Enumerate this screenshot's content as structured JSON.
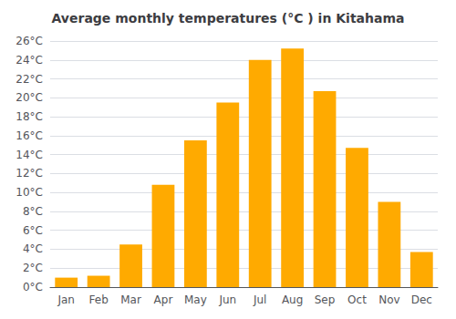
{
  "chart_data": {
    "type": "bar",
    "title": "Average monthly temperatures (°C ) in Kitahama",
    "categories": [
      "Jan",
      "Feb",
      "Mar",
      "Apr",
      "May",
      "Jun",
      "Jul",
      "Aug",
      "Sep",
      "Oct",
      "Nov",
      "Dec"
    ],
    "values": [
      1.0,
      1.2,
      4.5,
      10.8,
      15.5,
      19.5,
      24.0,
      25.2,
      20.7,
      14.7,
      9.0,
      3.7
    ],
    "color": "#FFAA00",
    "ylim": [
      0,
      26
    ],
    "yticks": [
      {
        "value": 0,
        "label": "0°C"
      },
      {
        "value": 2,
        "label": "2°C"
      },
      {
        "value": 4,
        "label": "4°C"
      },
      {
        "value": 6,
        "label": "6°C"
      },
      {
        "value": 8,
        "label": "8°C"
      },
      {
        "value": 10,
        "label": "10°C"
      },
      {
        "value": 12,
        "label": "12°C"
      },
      {
        "value": 14,
        "label": "14°C"
      },
      {
        "value": 16,
        "label": "16°C"
      },
      {
        "value": 18,
        "label": "18°C"
      },
      {
        "value": 20,
        "label": "20°C"
      },
      {
        "value": 22,
        "label": "22°C"
      },
      {
        "value": 24,
        "label": "24°C"
      },
      {
        "value": 26,
        "label": "26°C"
      }
    ],
    "grid": true
  }
}
